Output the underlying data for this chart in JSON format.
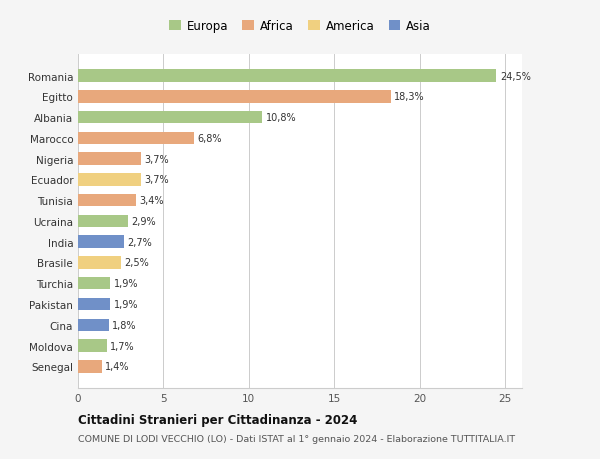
{
  "categories": [
    "Romania",
    "Egitto",
    "Albania",
    "Marocco",
    "Nigeria",
    "Ecuador",
    "Tunisia",
    "Ucraina",
    "India",
    "Brasile",
    "Turchia",
    "Pakistan",
    "Cina",
    "Moldova",
    "Senegal"
  ],
  "values": [
    24.5,
    18.3,
    10.8,
    6.8,
    3.7,
    3.7,
    3.4,
    2.9,
    2.7,
    2.5,
    1.9,
    1.9,
    1.8,
    1.7,
    1.4
  ],
  "labels": [
    "24,5%",
    "18,3%",
    "10,8%",
    "6,8%",
    "3,7%",
    "3,7%",
    "3,4%",
    "2,9%",
    "2,7%",
    "2,5%",
    "1,9%",
    "1,9%",
    "1,8%",
    "1,7%",
    "1,4%"
  ],
  "continents": [
    "Europa",
    "Africa",
    "Europa",
    "Africa",
    "Africa",
    "America",
    "Africa",
    "Europa",
    "Asia",
    "America",
    "Europa",
    "Asia",
    "Asia",
    "Europa",
    "Africa"
  ],
  "colors": {
    "Europa": "#a8c887",
    "Africa": "#e8a87c",
    "America": "#f0d080",
    "Asia": "#7090c8"
  },
  "legend_order": [
    "Europa",
    "Africa",
    "America",
    "Asia"
  ],
  "title": "Cittadini Stranieri per Cittadinanza - 2024",
  "subtitle": "COMUNE DI LODI VECCHIO (LO) - Dati ISTAT al 1° gennaio 2024 - Elaborazione TUTTITALIA.IT",
  "xlim": [
    0,
    26
  ],
  "xticks": [
    0,
    5,
    10,
    15,
    20,
    25
  ],
  "background_color": "#f5f5f5",
  "bar_background": "#ffffff",
  "grid_color": "#cccccc"
}
